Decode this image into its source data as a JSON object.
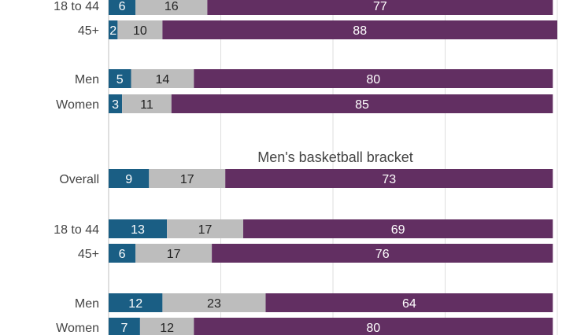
{
  "chart_data": {
    "type": "bar",
    "orientation": "horizontal",
    "stacked": true,
    "grid": true,
    "xlim": [
      0,
      100
    ],
    "colors": [
      "#1a5e84",
      "#bdbdbd",
      "#622f62"
    ],
    "label_colors": [
      "#ffffff",
      "#222222",
      "#ffffff"
    ],
    "section_title": "Men's basketball bracket",
    "groups": [
      {
        "rows": [
          {
            "label": "18 to 44",
            "values": [
              6,
              16,
              77
            ]
          },
          {
            "label": "45+",
            "values": [
              2,
              10,
              88
            ]
          }
        ]
      },
      {
        "rows": [
          {
            "label": "Men",
            "values": [
              5,
              14,
              80
            ]
          },
          {
            "label": "Women",
            "values": [
              3,
              11,
              85
            ]
          }
        ]
      },
      {
        "rows": [
          {
            "label": "Overall",
            "values": [
              9,
              17,
              73
            ]
          }
        ]
      },
      {
        "rows": [
          {
            "label": "18 to 44",
            "values": [
              13,
              17,
              69
            ]
          },
          {
            "label": "45+",
            "values": [
              6,
              17,
              76
            ]
          }
        ]
      },
      {
        "rows": [
          {
            "label": "Men",
            "values": [
              12,
              23,
              64
            ]
          },
          {
            "label": "Women",
            "values": [
              7,
              12,
              80
            ]
          }
        ]
      }
    ]
  }
}
